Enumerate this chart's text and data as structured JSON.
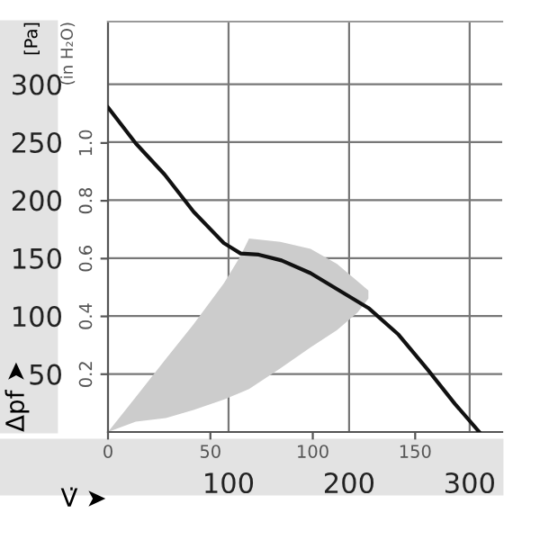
{
  "chart_data": {
    "type": "line",
    "xlabel": "V̇ ➤",
    "ylabel": "Δpf ➤",
    "y2label": "(in H₂O)",
    "annotations": [
      "[Pa]"
    ],
    "xlim": [
      0,
      327
    ],
    "xticks": [
      100,
      200,
      300
    ],
    "ylim": [
      0,
      354
    ],
    "yticks": [
      50,
      100,
      150,
      200,
      250,
      300
    ],
    "x2lim": [
      0,
      192.5
    ],
    "x2ticks": [
      0,
      50,
      100,
      150
    ],
    "y2lim": [
      0,
      1.42
    ],
    "y2ticks": [
      0.2,
      0.4,
      0.6,
      0.8,
      {
        "value": 1.0,
        "label": "1.0"
      }
    ],
    "grid": true,
    "legend": false,
    "marker": "none",
    "line_style": "solid",
    "series": [
      {
        "color": "#cccccc",
        "x": [
          0,
          23,
          48,
          71,
          96,
          110,
          117,
          143,
          168,
          190,
          207,
          216
        ],
        "values": [
          null,
          null,
          null,
          null,
          null,
          null,
          null,
          null,
          null,
          null,
          null,
          null
        ],
        "upper": [
          0,
          30,
          63,
          93,
          128,
          152,
          167,
          164,
          158,
          145,
          130,
          122
        ],
        "lower": [
          0,
          9,
          12,
          19,
          28,
          34,
          37,
          55,
          73,
          88,
          103,
          115
        ]
      },
      {
        "color": "#111111",
        "x": [
          0,
          23,
          47,
          71,
          96,
          110,
          125,
          144,
          168,
          216,
          241,
          265,
          288,
          308
        ],
        "values": [
          280,
          249,
          222,
          190,
          163,
          154,
          153,
          148,
          137,
          107,
          84,
          54,
          24,
          0
        ]
      }
    ]
  }
}
